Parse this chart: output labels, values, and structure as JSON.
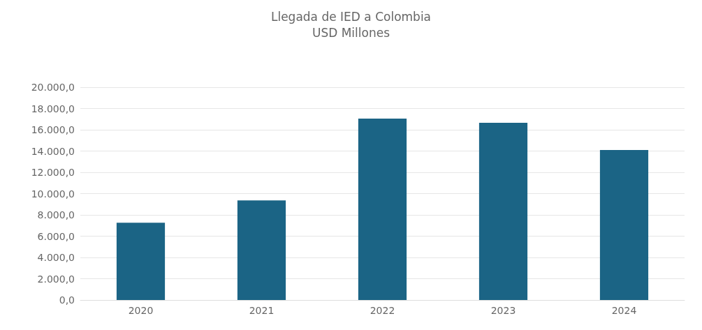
{
  "chart_data": {
    "type": "bar",
    "title": "Llegada de IED a Colombia",
    "subtitle": "USD Millones",
    "categories": [
      "2020",
      "2021",
      "2022",
      "2023",
      "2024"
    ],
    "values": [
      7260,
      9360,
      17050,
      16660,
      14100
    ],
    "color": "#1b6485",
    "ylim": [
      0,
      20000
    ],
    "yticks": [
      {
        "value": 0,
        "label": "0,0"
      },
      {
        "value": 2000,
        "label": "2.000,0"
      },
      {
        "value": 4000,
        "label": "4.000,0"
      },
      {
        "value": 6000,
        "label": "6.000,0"
      },
      {
        "value": 8000,
        "label": "8.000,0"
      },
      {
        "value": 10000,
        "label": "10.000,0"
      },
      {
        "value": 12000,
        "label": "12.000,0"
      },
      {
        "value": 14000,
        "label": "14.000,0"
      },
      {
        "value": 16000,
        "label": "16.000,0"
      },
      {
        "value": 18000,
        "label": "18.000,0"
      },
      {
        "value": 20000,
        "label": "20.000,0"
      }
    ],
    "grid": "y"
  }
}
